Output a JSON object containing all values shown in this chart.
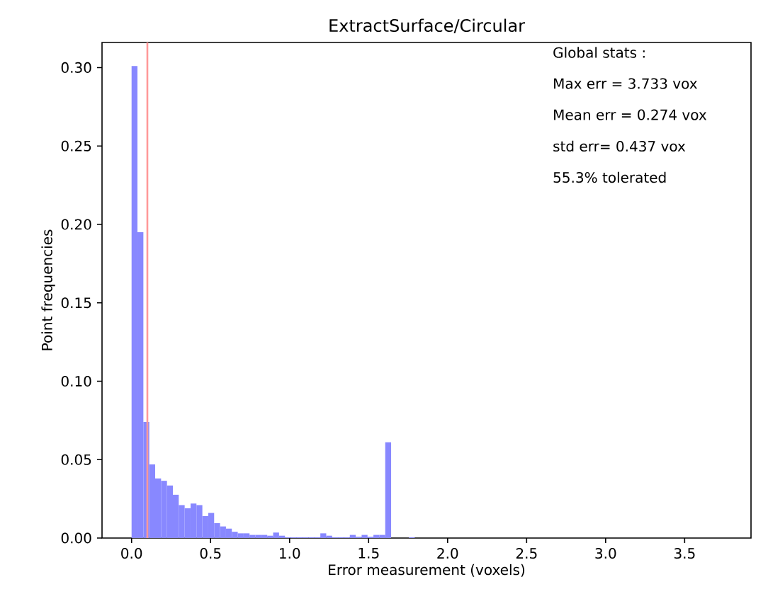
{
  "chart_data": {
    "type": "histogram",
    "title": "ExtractSurface/Circular",
    "xlabel": "Error measurement (voxels)",
    "ylabel": "Point frequencies",
    "bins": [
      0,
      0.0373,
      0.0747,
      0.112,
      0.1493,
      0.1867,
      0.224,
      0.2613,
      0.2986,
      0.336,
      0.3733,
      0.4106,
      0.448,
      0.4853,
      0.5226,
      0.56,
      0.5973,
      0.6346,
      0.6719,
      0.7093,
      0.7466,
      0.7839,
      0.8213,
      0.8586,
      0.8959,
      0.9333,
      0.9706,
      1.0079,
      1.0452,
      1.0826,
      1.1199,
      1.1572,
      1.1946,
      1.2319,
      1.2692,
      1.3066,
      1.3439,
      1.3812,
      1.4185,
      1.4559,
      1.4932,
      1.5305,
      1.5679,
      1.6052,
      1.6425,
      1.6799,
      1.7172,
      1.7545,
      1.7918,
      1.8292,
      1.8665,
      1.9038,
      1.9412,
      1.9785,
      2.0158,
      2.0532,
      2.0905,
      2.1278,
      2.1651,
      2.2025,
      2.2398,
      2.2771,
      2.3145,
      2.3518,
      2.3891,
      2.4265,
      2.4638,
      2.5011,
      2.5384,
      2.5758,
      2.6131,
      2.6504,
      2.6878,
      2.7251,
      2.7624,
      2.7998,
      2.8371,
      2.8744,
      2.9117,
      2.9491,
      2.9864,
      3.0237,
      3.0611,
      3.0984,
      3.1357,
      3.1731,
      3.2104,
      3.2477,
      3.285,
      3.3224,
      3.3597,
      3.397,
      3.4344,
      3.4717,
      3.509,
      3.5464,
      3.5837,
      3.621,
      3.6583,
      3.6957,
      3.733
    ],
    "values": [
      0.301,
      0.195,
      0.074,
      0.047,
      0.038,
      0.0365,
      0.0335,
      0.0276,
      0.021,
      0.019,
      0.022,
      0.021,
      0.014,
      0.016,
      0.0095,
      0.0074,
      0.006,
      0.004,
      0.003,
      0.003,
      0.002,
      0.002,
      0.002,
      0.0015,
      0.0035,
      0.0015,
      0.0005,
      0.0005,
      0.0005,
      0.0005,
      0.0005,
      0.0005,
      0.003,
      0.0015,
      0.0005,
      0.0005,
      0.0005,
      0.002,
      0.0008,
      0.002,
      0.0008,
      0.002,
      0.002,
      0.061,
      0,
      0,
      0,
      0.0005,
      0,
      0,
      0,
      0,
      0,
      0,
      0,
      0,
      0,
      0,
      0,
      0,
      0,
      0,
      0,
      0,
      0,
      0,
      0,
      0,
      0,
      0,
      0,
      0,
      0,
      0,
      0,
      0,
      0,
      0,
      0,
      0,
      0,
      0,
      0,
      0,
      0,
      0,
      0,
      0,
      0,
      0,
      0,
      0,
      0,
      0,
      0,
      0,
      0,
      0,
      0,
      0
    ],
    "color": "#8888ff",
    "xlim": [
      -0.187,
      3.92
    ],
    "ylim": [
      0,
      0.316
    ],
    "xticks": [
      {
        "value": 0,
        "label": "0.0"
      },
      {
        "value": 0.5,
        "label": "0.5"
      },
      {
        "value": 1,
        "label": "1.0"
      },
      {
        "value": 1.5,
        "label": "1.5"
      },
      {
        "value": 2,
        "label": "2.0"
      },
      {
        "value": 2.5,
        "label": "2.5"
      },
      {
        "value": 3,
        "label": "3.0"
      },
      {
        "value": 3.5,
        "label": "3.5"
      }
    ],
    "yticks": [
      {
        "value": 0,
        "label": "0.00"
      },
      {
        "value": 0.05,
        "label": "0.05"
      },
      {
        "value": 0.1,
        "label": "0.10"
      },
      {
        "value": 0.15,
        "label": "0.15"
      },
      {
        "value": 0.2,
        "label": "0.20"
      },
      {
        "value": 0.25,
        "label": "0.25"
      },
      {
        "value": 0.3,
        "label": "0.30"
      }
    ],
    "ref_lines": [
      {
        "axis": "x",
        "value": 0.1,
        "color": "#ff9999"
      }
    ],
    "annotations": [
      "Global stats :",
      "Max err = 3.733 vox",
      "Mean err = 0.274 vox",
      "std err= 0.437 vox",
      "55.3% tolerated"
    ]
  }
}
